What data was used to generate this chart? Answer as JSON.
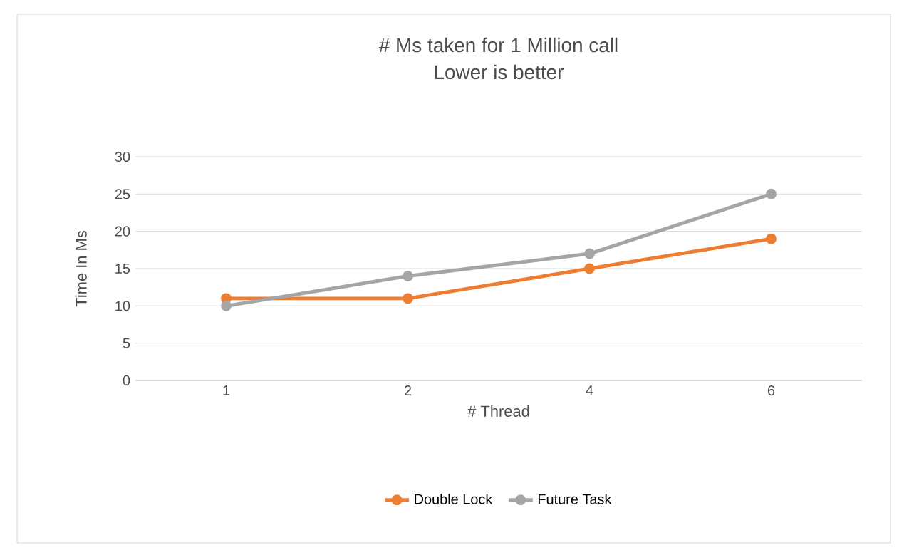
{
  "chart_data": {
    "type": "line",
    "title": "# Ms taken for 1 Million call\nLower is better",
    "xlabel": "# Thread",
    "ylabel": "Time In Ms",
    "categories": [
      "1",
      "2",
      "4",
      "6"
    ],
    "series": [
      {
        "name": "Double Lock",
        "color": "#ed7d31",
        "values": [
          11,
          11,
          15,
          19
        ]
      },
      {
        "name": "Future Task",
        "color": "#a5a5a5",
        "values": [
          10,
          14,
          17,
          25
        ]
      }
    ],
    "ylim": [
      0,
      30
    ],
    "yticks": [
      0,
      5,
      10,
      15,
      20,
      25,
      30
    ],
    "grid": "y",
    "legend": "bottom",
    "marker": "circle",
    "line_style": "solid"
  }
}
